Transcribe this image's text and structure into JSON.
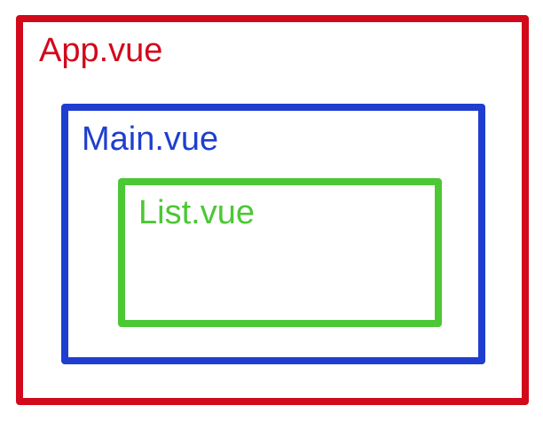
{
  "components": {
    "app": {
      "label": "App.vue",
      "color": "#d2091b"
    },
    "main": {
      "label": "Main.vue",
      "color": "#1f3ecf"
    },
    "list": {
      "label": "List.vue",
      "color": "#4bc833"
    }
  }
}
